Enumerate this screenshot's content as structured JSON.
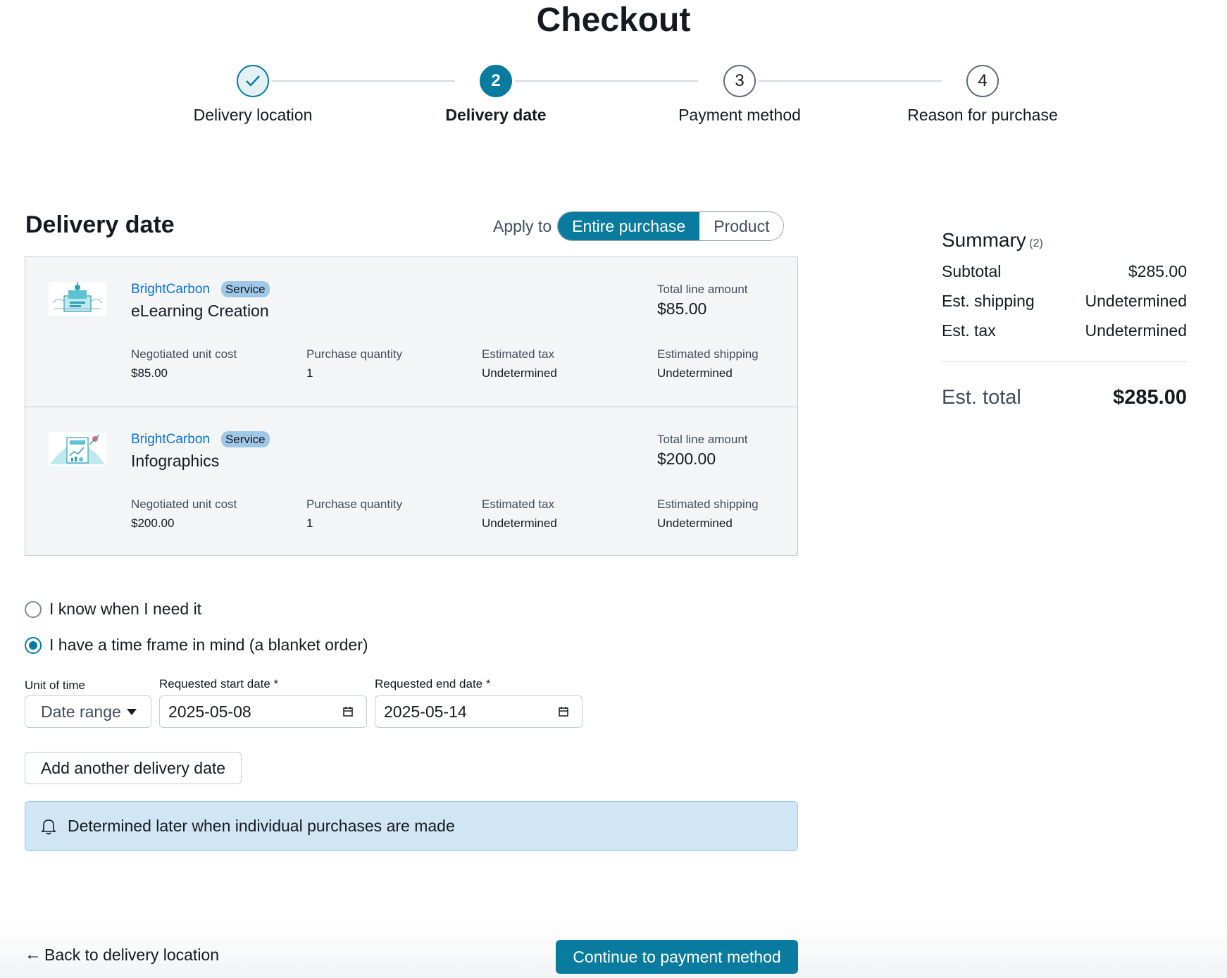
{
  "page": {
    "title": "Checkout"
  },
  "stepper": {
    "steps": [
      {
        "label": "Delivery location",
        "marker": "check-icon",
        "state": "done"
      },
      {
        "label": "Delivery date",
        "number": "2",
        "state": "active"
      },
      {
        "label": "Payment method",
        "number": "3",
        "state": "pending"
      },
      {
        "label": "Reason for purchase",
        "number": "4",
        "state": "pending"
      }
    ]
  },
  "delivery": {
    "title": "Delivery date",
    "apply_to_label": "Apply to",
    "apply_options": [
      "Entire purchase",
      "Product"
    ],
    "apply_selected": "Entire purchase"
  },
  "items": [
    {
      "vendor": "BrightCarbon",
      "badge": "Service",
      "name": "eLearning Creation",
      "thumbnail_icon": "elearning-illustration-icon",
      "total_label": "Total line amount",
      "total": "$85.00",
      "meta": [
        {
          "label": "Negotiated unit cost",
          "value": "$85.00"
        },
        {
          "label": "Purchase quantity",
          "value": "1"
        },
        {
          "label": "Estimated tax",
          "value": "Undetermined"
        },
        {
          "label": "Estimated shipping",
          "value": "Undetermined"
        }
      ]
    },
    {
      "vendor": "BrightCarbon",
      "badge": "Service",
      "name": "Infographics",
      "thumbnail_icon": "infographics-illustration-icon",
      "total_label": "Total line amount",
      "total": "$200.00",
      "meta": [
        {
          "label": "Negotiated unit cost",
          "value": "$200.00"
        },
        {
          "label": "Purchase quantity",
          "value": "1"
        },
        {
          "label": "Estimated tax",
          "value": "Undetermined"
        },
        {
          "label": "Estimated shipping",
          "value": "Undetermined"
        }
      ]
    }
  ],
  "timing": {
    "options": [
      {
        "label": "I know when I need it",
        "selected": false
      },
      {
        "label": "I have a time frame in mind (a blanket order)",
        "selected": true
      }
    ],
    "unit_label": "Unit of time",
    "unit_value": "Date range",
    "start_label": "Requested start date *",
    "start_value": "2025-05-08",
    "end_label": "Requested end date *",
    "end_value": "2025-05-14",
    "add_button": "Add another delivery date",
    "info_text": "Determined later when individual purchases are made"
  },
  "summary": {
    "title": "Summary",
    "count": "(2)",
    "rows": [
      {
        "label": "Subtotal",
        "value": "$285.00"
      },
      {
        "label": "Est. shipping",
        "value": "Undetermined"
      },
      {
        "label": "Est. tax",
        "value": "Undetermined"
      }
    ],
    "total_label": "Est. total",
    "total_value": "$285.00"
  },
  "footer": {
    "back_label": "Back to delivery location",
    "continue_label": "Continue to payment method"
  },
  "colors": {
    "accent": "#087b9e",
    "link": "#0972d3",
    "info_bg": "#d1e6f5",
    "badge_bg": "#9ec7e8",
    "card_bg": "#f4f5f7"
  }
}
